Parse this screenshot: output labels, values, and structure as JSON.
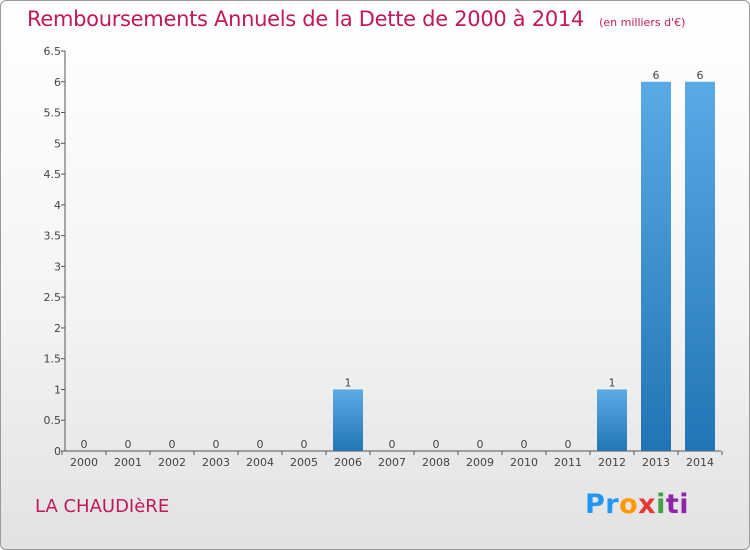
{
  "header": {
    "title": "Remboursements Annuels de la Dette de 2000 à 2014",
    "unit": "(en milliers d'€)"
  },
  "commune": "LA CHAUDIèRE",
  "logo": {
    "text": "Proxiti",
    "parts": [
      "Pr",
      "o",
      "x",
      "i",
      "ti"
    ]
  },
  "colors": {
    "title": "#c2185b",
    "bar_top": "#5aaae6",
    "bar_bottom": "#2374b4"
  },
  "chart_data": {
    "type": "bar",
    "title": "Remboursements Annuels de la Dette de 2000 à 2014",
    "subtitle": "(en milliers d'€)",
    "xlabel": "",
    "ylabel": "",
    "categories": [
      "2000",
      "2001",
      "2002",
      "2003",
      "2004",
      "2005",
      "2006",
      "2007",
      "2008",
      "2009",
      "2010",
      "2011",
      "2012",
      "2013",
      "2014"
    ],
    "values": [
      0,
      0,
      0,
      0,
      0,
      0,
      1,
      0,
      0,
      0,
      0,
      0,
      1,
      6,
      6
    ],
    "data_labels": [
      "0",
      "0",
      "0",
      "0",
      "0",
      "0",
      "1",
      "0",
      "0",
      "0",
      "0",
      "0",
      "1",
      "6",
      "6"
    ],
    "ylim": [
      0,
      6.5
    ],
    "yticks": [
      "0",
      "0.5",
      "1",
      "1.5",
      "2",
      "2.5",
      "3",
      "3.5",
      "4",
      "4.5",
      "5",
      "5.5",
      "6",
      "6.5"
    ],
    "grid": false,
    "legend": "none"
  }
}
